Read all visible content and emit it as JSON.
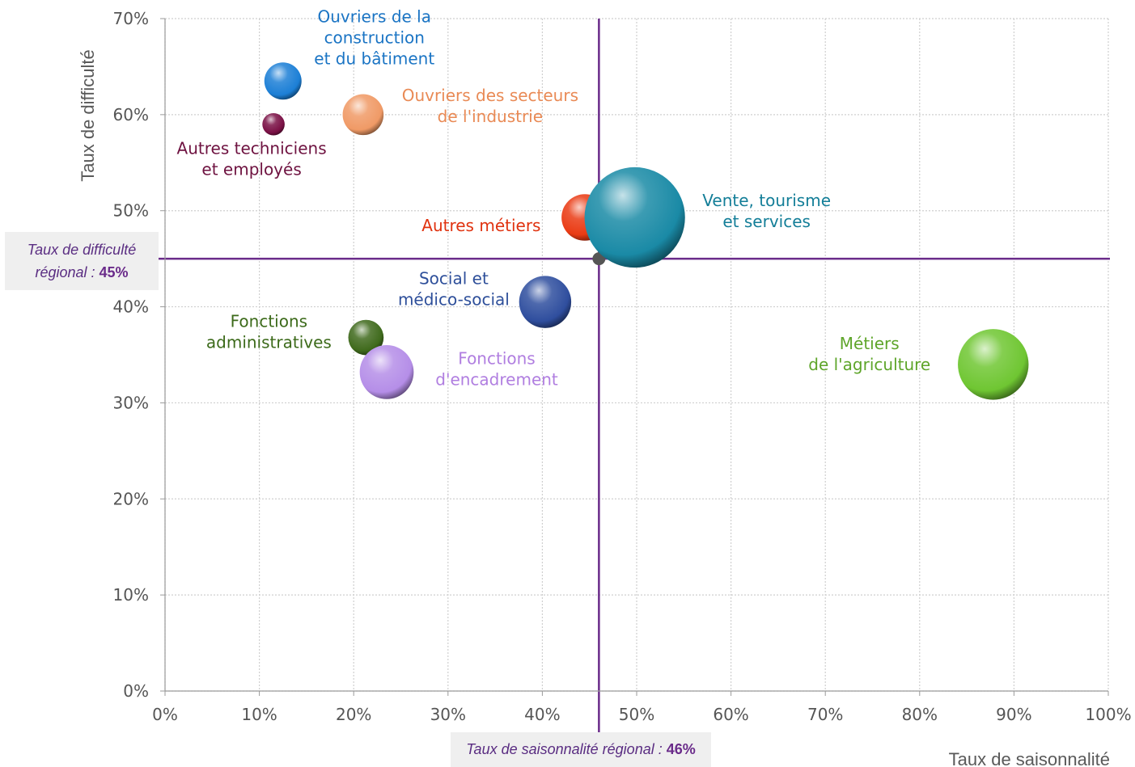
{
  "chart_data": {
    "type": "bubble",
    "xlabel": "Taux de saisonnalité",
    "ylabel": "Taux de difficulté",
    "xlim": [
      0,
      100
    ],
    "ylim": [
      0,
      70
    ],
    "x_ticks": [
      "0%",
      "10%",
      "20%",
      "30%",
      "40%",
      "50%",
      "60%",
      "70%",
      "80%",
      "90%",
      "100%"
    ],
    "y_ticks": [
      "0%",
      "10%",
      "20%",
      "30%",
      "40%",
      "50%",
      "60%",
      "70%"
    ],
    "grid": true,
    "reference_lines": {
      "x": {
        "value": 46,
        "label": "Taux de saisonnalité régional",
        "value_label": "46%"
      },
      "y": {
        "value": 45,
        "label_line1": "Taux de difficulté",
        "label_line2": "régional",
        "value_label": "45%"
      },
      "color": "#6a2b8a"
    },
    "series": [
      {
        "name": "Ouvriers de la construction et du bâtiment",
        "label_lines": [
          "Ouvriers de la",
          "construction",
          "et du bâtiment"
        ],
        "x": 12.5,
        "y": 63.5,
        "size": 20,
        "color": "#1c7fd6",
        "label_color": "#1a74c4"
      },
      {
        "name": "Autres techniciens et employés",
        "label_lines": [
          "Autres techniciens",
          "et employés"
        ],
        "x": 11.5,
        "y": 59,
        "size": 12,
        "color": "#7a1045",
        "label_color": "#6e1240"
      },
      {
        "name": "Ouvriers des secteurs de l'industrie",
        "label_lines": [
          "Ouvriers des secteurs",
          "de l'industrie"
        ],
        "x": 21,
        "y": 60,
        "size": 22,
        "color": "#f09a66",
        "label_color": "#e98a55"
      },
      {
        "name": "Autres métiers",
        "label_lines": [
          "Autres métiers"
        ],
        "x": 44.5,
        "y": 49.3,
        "size": 25,
        "color": "#ea3b14",
        "label_color": "#e0320f"
      },
      {
        "name": "Vente, tourisme et services",
        "label_lines": [
          "Vente, tourisme",
          "et services"
        ],
        "x": 49.8,
        "y": 49.3,
        "size": 54,
        "color": "#1a8aa6",
        "label_color": "#137e98"
      },
      {
        "name": "Social et médico-social",
        "label_lines": [
          "Social et",
          "médico-social"
        ],
        "x": 40.3,
        "y": 40.5,
        "size": 28,
        "color": "#2f4e9e",
        "label_color": "#2e4f9a"
      },
      {
        "name": "Fonctions administratives",
        "label_lines": [
          "Fonctions",
          "administratives"
        ],
        "x": 21.3,
        "y": 36.8,
        "size": 19,
        "color": "#3f6a1c",
        "label_color": "#3c6a1a"
      },
      {
        "name": "Fonctions d'encadrement",
        "label_lines": [
          "Fonctions",
          "d'encadrement"
        ],
        "x": 23.5,
        "y": 33.2,
        "size": 29,
        "color": "#b58ee8",
        "label_color": "#b07ee0"
      },
      {
        "name": "Métiers de l'agriculture",
        "label_lines": [
          "Métiers",
          "de l'agriculture"
        ],
        "x": 87.8,
        "y": 34,
        "size": 38,
        "color": "#6fc632",
        "label_color": "#5ea52a"
      }
    ]
  }
}
